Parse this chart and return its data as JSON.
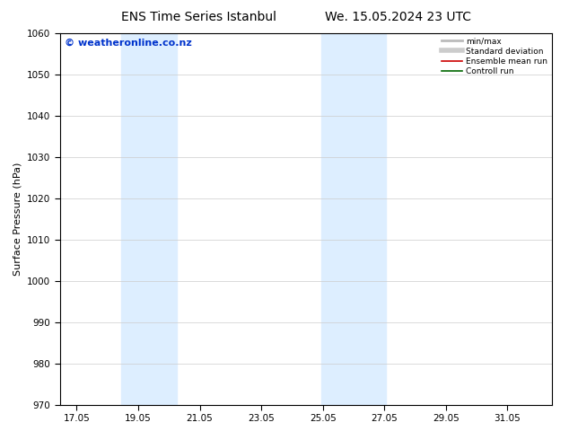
{
  "title_left": "ENS Time Series Istanbul",
  "title_right": "We. 15.05.2024 23 UTC",
  "ylabel": "Surface Pressure (hPa)",
  "ylim": [
    970,
    1060
  ],
  "yticks": [
    970,
    980,
    990,
    1000,
    1010,
    1020,
    1030,
    1040,
    1050,
    1060
  ],
  "xlim_start": 16.5,
  "xlim_end": 32.5,
  "xtick_labels": [
    "17.05",
    "19.05",
    "21.05",
    "23.05",
    "25.05",
    "27.05",
    "29.05",
    "31.05"
  ],
  "xtick_positions": [
    17.05,
    19.05,
    21.05,
    23.05,
    25.05,
    27.05,
    29.05,
    31.05
  ],
  "shaded_bands": [
    {
      "x_start": 18.5,
      "x_end": 20.3
    },
    {
      "x_start": 25.0,
      "x_end": 27.1
    }
  ],
  "shade_color": "#ddeeff",
  "watermark_text": "© weatheronline.co.nz",
  "watermark_color": "#0033cc",
  "legend_entries": [
    {
      "label": "min/max",
      "color": "#bbbbbb",
      "lw": 2.0
    },
    {
      "label": "Standard deviation",
      "color": "#cccccc",
      "lw": 4.0
    },
    {
      "label": "Ensemble mean run",
      "color": "#cc0000",
      "lw": 1.2
    },
    {
      "label": "Controll run",
      "color": "#006600",
      "lw": 1.2
    }
  ],
  "background_color": "#ffffff",
  "grid_color": "#cccccc",
  "title_fontsize": 10,
  "axis_label_fontsize": 8,
  "tick_fontsize": 7.5,
  "watermark_fontsize": 8
}
